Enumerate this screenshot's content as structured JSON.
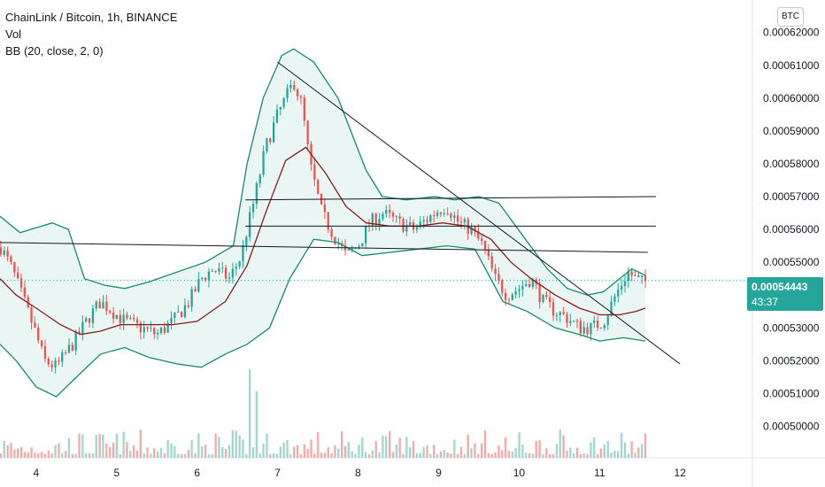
{
  "legend": {
    "symbol_line": "ChainLink / Bitcoin, 1h, BINANCE",
    "vol_label": "Vol",
    "bb_label": "BB (20, close, 2, 0)"
  },
  "currency_badge": "BTC",
  "last_price": {
    "value": "0.00054443",
    "countdown": "43:37"
  },
  "colors": {
    "up": "#26a69a",
    "down": "#ef5350",
    "bb_band": "#168a6e",
    "bb_basis": "#8b1a1a",
    "bb_fill": "#e6f4f1",
    "vol_up": "#9fd6cf",
    "vol_down": "#f4a9a7",
    "trendline": "#131722"
  },
  "chart_data": {
    "type": "candlestick",
    "y_axis": {
      "range": [
        0.000495,
        0.000621
      ],
      "ticks": [
        "0.00050000",
        "0.00051000",
        "0.00052000",
        "0.00053000",
        "0.00054000",
        "0.00055000",
        "0.00056000",
        "0.00057000",
        "0.00058000",
        "0.00059000",
        "0.00060000",
        "0.00061000",
        "0.00062000"
      ]
    },
    "x_axis": {
      "range": [
        3.55,
        12.9
      ],
      "ticks": [
        "4",
        "5",
        "6",
        "7",
        "8",
        "9",
        "10",
        "11",
        "12"
      ]
    },
    "price_path": [
      [
        3.55,
        0.000555
      ],
      [
        3.7,
        0.000548
      ],
      [
        3.85,
        0.000538
      ],
      [
        4.0,
        0.000528
      ],
      [
        4.1,
        0.00052
      ],
      [
        4.25,
        0.000518
      ],
      [
        4.45,
        0.000525
      ],
      [
        4.65,
        0.000533
      ],
      [
        4.8,
        0.000538
      ],
      [
        4.95,
        0.000535
      ],
      [
        5.1,
        0.000532
      ],
      [
        5.3,
        0.00053
      ],
      [
        5.5,
        0.000528
      ],
      [
        5.7,
        0.000532
      ],
      [
        5.9,
        0.000538
      ],
      [
        6.05,
        0.000545
      ],
      [
        6.2,
        0.000548
      ],
      [
        6.4,
        0.000545
      ],
      [
        6.55,
        0.000552
      ],
      [
        6.62,
        0.00056
      ],
      [
        6.7,
        0.000568
      ],
      [
        6.85,
        0.000585
      ],
      [
        7.0,
        0.000595
      ],
      [
        7.1,
        0.0006
      ],
      [
        7.2,
        0.000605
      ],
      [
        7.3,
        0.000598
      ],
      [
        7.4,
        0.00058
      ],
      [
        7.55,
        0.000565
      ],
      [
        7.7,
        0.000558
      ],
      [
        7.85,
        0.000552
      ],
      [
        8.0,
        0.000555
      ],
      [
        8.15,
        0.000562
      ],
      [
        8.3,
        0.000565
      ],
      [
        8.5,
        0.000562
      ],
      [
        8.7,
        0.00056
      ],
      [
        8.85,
        0.000563
      ],
      [
        9.0,
        0.000566
      ],
      [
        9.1,
        0.000567
      ],
      [
        9.25,
        0.000562
      ],
      [
        9.4,
        0.00056
      ],
      [
        9.55,
        0.000555
      ],
      [
        9.7,
        0.000545
      ],
      [
        9.85,
        0.00054
      ],
      [
        10.0,
        0.000542
      ],
      [
        10.15,
        0.000545
      ],
      [
        10.3,
        0.000538
      ],
      [
        10.45,
        0.000535
      ],
      [
        10.6,
        0.000533
      ],
      [
        10.75,
        0.00053
      ],
      [
        10.9,
        0.00053
      ],
      [
        11.05,
        0.000532
      ],
      [
        11.2,
        0.00054
      ],
      [
        11.35,
        0.000547
      ],
      [
        11.5,
        0.000544
      ]
    ],
    "bollinger": {
      "upper": [
        [
          3.55,
          0.000564
        ],
        [
          3.8,
          0.000559
        ],
        [
          4.2,
          0.000562
        ],
        [
          4.4,
          0.00056
        ],
        [
          4.6,
          0.000545
        ],
        [
          4.85,
          0.000543
        ],
        [
          5.1,
          0.000542
        ],
        [
          5.4,
          0.000544
        ],
        [
          5.75,
          0.000547
        ],
        [
          6.1,
          0.00055
        ],
        [
          6.45,
          0.000555
        ],
        [
          6.62,
          0.00058
        ],
        [
          6.82,
          0.0006
        ],
        [
          7.05,
          0.000613
        ],
        [
          7.2,
          0.000615
        ],
        [
          7.45,
          0.000611
        ],
        [
          7.75,
          0.0006
        ],
        [
          8.1,
          0.000578
        ],
        [
          8.3,
          0.00057
        ],
        [
          8.6,
          0.000569
        ],
        [
          8.95,
          0.00057
        ],
        [
          9.2,
          0.000569
        ],
        [
          9.5,
          0.00057
        ],
        [
          9.75,
          0.000568
        ],
        [
          10.05,
          0.000558
        ],
        [
          10.35,
          0.000548
        ],
        [
          10.6,
          0.000542
        ],
        [
          10.85,
          0.00054
        ],
        [
          11.05,
          0.000541
        ],
        [
          11.2,
          0.000544
        ],
        [
          11.4,
          0.000548
        ],
        [
          11.57,
          0.000546
        ]
      ],
      "basis": [
        [
          3.55,
          0.000545
        ],
        [
          3.75,
          0.00054
        ],
        [
          4.0,
          0.000536
        ],
        [
          4.3,
          0.000531
        ],
        [
          4.55,
          0.000528
        ],
        [
          4.8,
          0.000529
        ],
        [
          5.05,
          0.000531
        ],
        [
          5.35,
          0.000531
        ],
        [
          5.7,
          0.000531
        ],
        [
          6.0,
          0.000532
        ],
        [
          6.35,
          0.000538
        ],
        [
          6.62,
          0.000549
        ],
        [
          6.85,
          0.000565
        ],
        [
          7.1,
          0.000581
        ],
        [
          7.35,
          0.000585
        ],
        [
          7.6,
          0.000577
        ],
        [
          7.85,
          0.000567
        ],
        [
          8.1,
          0.000562
        ],
        [
          8.4,
          0.000561
        ],
        [
          8.75,
          0.000561
        ],
        [
          9.05,
          0.000562
        ],
        [
          9.35,
          0.000561
        ],
        [
          9.65,
          0.000557
        ],
        [
          9.9,
          0.00055
        ],
        [
          10.15,
          0.000545
        ],
        [
          10.45,
          0.00054
        ],
        [
          10.75,
          0.000536
        ],
        [
          11.0,
          0.000534
        ],
        [
          11.25,
          0.000534
        ],
        [
          11.45,
          0.000535
        ],
        [
          11.57,
          0.000536
        ]
      ],
      "lower": [
        [
          3.55,
          0.000525
        ],
        [
          3.75,
          0.00052
        ],
        [
          4.0,
          0.000512
        ],
        [
          4.25,
          0.000509
        ],
        [
          4.5,
          0.000515
        ],
        [
          4.8,
          0.000522
        ],
        [
          5.1,
          0.000524
        ],
        [
          5.4,
          0.000521
        ],
        [
          5.75,
          0.000519
        ],
        [
          6.05,
          0.000518
        ],
        [
          6.35,
          0.000522
        ],
        [
          6.62,
          0.000525
        ],
        [
          6.9,
          0.00053
        ],
        [
          7.15,
          0.000545
        ],
        [
          7.45,
          0.000557
        ],
        [
          7.75,
          0.000556
        ],
        [
          8.05,
          0.000552
        ],
        [
          8.4,
          0.000553
        ],
        [
          8.75,
          0.000554
        ],
        [
          9.1,
          0.000555
        ],
        [
          9.45,
          0.000554
        ],
        [
          9.8,
          0.000538
        ],
        [
          10.1,
          0.000535
        ],
        [
          10.45,
          0.00053
        ],
        [
          10.75,
          0.000528
        ],
        [
          11.0,
          0.000526
        ],
        [
          11.3,
          0.000527
        ],
        [
          11.57,
          0.000526
        ]
      ]
    },
    "trendlines": [
      {
        "x1": 6.6,
        "y1": 0.000569,
        "x2": 11.7,
        "y2": 0.00057
      },
      {
        "x1": 6.6,
        "y1": 0.000561,
        "x2": 11.7,
        "y2": 0.000561
      },
      {
        "x1": 3.55,
        "y1": 0.000556,
        "x2": 11.6,
        "y2": 0.000553
      },
      {
        "x1": 7.0,
        "y1": 0.000611,
        "x2": 12.0,
        "y2": 0.000519
      }
    ],
    "last_price": 0.00054443
  }
}
